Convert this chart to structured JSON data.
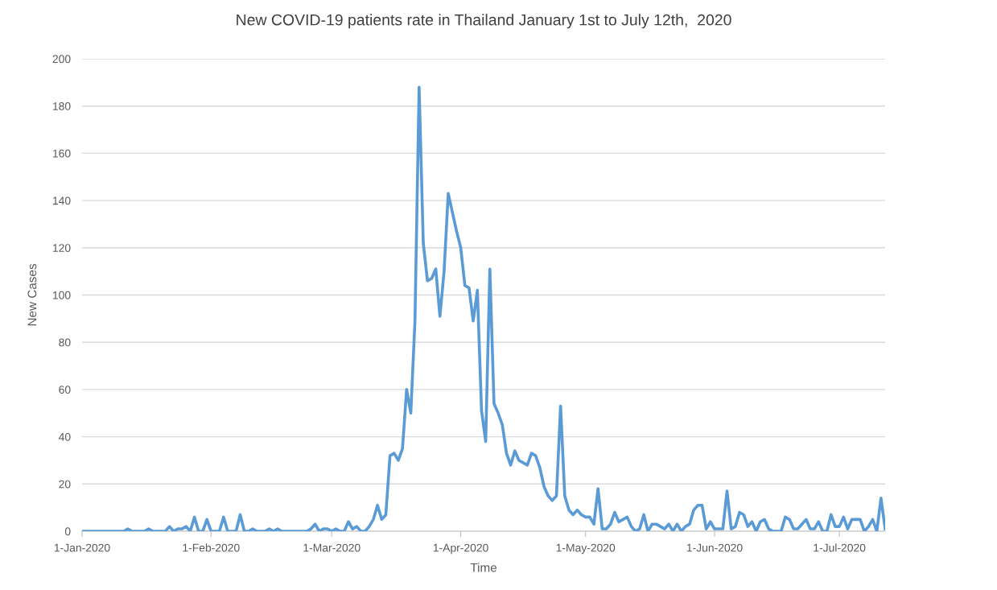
{
  "chart_data": {
    "type": "line",
    "title": "New COVID-19 patients rate in Thailand January 1st to July 12th,  2020",
    "xlabel": "Time",
    "ylabel": "New Cases",
    "x": [
      "2020-01-01",
      "2020-01-11",
      "2020-01-12",
      "2020-01-13",
      "2020-01-16",
      "2020-01-17",
      "2020-01-18",
      "2020-01-21",
      "2020-01-22",
      "2020-01-23",
      "2020-01-24",
      "2020-01-25",
      "2020-01-26",
      "2020-01-27",
      "2020-01-28",
      "2020-01-29",
      "2020-01-30",
      "2020-01-31",
      "2020-02-01",
      "2020-02-03",
      "2020-02-04",
      "2020-02-05",
      "2020-02-07",
      "2020-02-08",
      "2020-02-09",
      "2020-02-10",
      "2020-02-11",
      "2020-02-12",
      "2020-02-14",
      "2020-02-15",
      "2020-02-16",
      "2020-02-17",
      "2020-02-18",
      "2020-02-24",
      "2020-02-25",
      "2020-02-26",
      "2020-02-27",
      "2020-02-28",
      "2020-02-29",
      "2020-03-01",
      "2020-03-02",
      "2020-03-03",
      "2020-03-04",
      "2020-03-05",
      "2020-03-06",
      "2020-03-07",
      "2020-03-08",
      "2020-03-09",
      "2020-03-10",
      "2020-03-11",
      "2020-03-12",
      "2020-03-13",
      "2020-03-14",
      "2020-03-15",
      "2020-03-16",
      "2020-03-17",
      "2020-03-18",
      "2020-03-19",
      "2020-03-20",
      "2020-03-21",
      "2020-03-22",
      "2020-03-23",
      "2020-03-24",
      "2020-03-25",
      "2020-03-26",
      "2020-03-27",
      "2020-03-28",
      "2020-03-29",
      "2020-03-30",
      "2020-03-31",
      "2020-04-01",
      "2020-04-02",
      "2020-04-03",
      "2020-04-04",
      "2020-04-05",
      "2020-04-06",
      "2020-04-07",
      "2020-04-08",
      "2020-04-09",
      "2020-04-10",
      "2020-04-11",
      "2020-04-12",
      "2020-04-13",
      "2020-04-14",
      "2020-04-15",
      "2020-04-16",
      "2020-04-17",
      "2020-04-18",
      "2020-04-19",
      "2020-04-20",
      "2020-04-21",
      "2020-04-22",
      "2020-04-23",
      "2020-04-24",
      "2020-04-25",
      "2020-04-26",
      "2020-04-27",
      "2020-04-28",
      "2020-04-29",
      "2020-04-30",
      "2020-05-01",
      "2020-05-02",
      "2020-05-03",
      "2020-05-04",
      "2020-05-05",
      "2020-05-06",
      "2020-05-07",
      "2020-05-08",
      "2020-05-09",
      "2020-05-10",
      "2020-05-11",
      "2020-05-12",
      "2020-05-13",
      "2020-05-14",
      "2020-05-15",
      "2020-05-16",
      "2020-05-17",
      "2020-05-18",
      "2020-05-19",
      "2020-05-20",
      "2020-05-21",
      "2020-05-22",
      "2020-05-23",
      "2020-05-24",
      "2020-05-25",
      "2020-05-26",
      "2020-05-27",
      "2020-05-28",
      "2020-05-29",
      "2020-05-30",
      "2020-05-31",
      "2020-06-01",
      "2020-06-02",
      "2020-06-03",
      "2020-06-04",
      "2020-06-05",
      "2020-06-06",
      "2020-06-07",
      "2020-06-08",
      "2020-06-09",
      "2020-06-10",
      "2020-06-11",
      "2020-06-12",
      "2020-06-13",
      "2020-06-14",
      "2020-06-15",
      "2020-06-16",
      "2020-06-17",
      "2020-06-18",
      "2020-06-19",
      "2020-06-20",
      "2020-06-21",
      "2020-06-22",
      "2020-06-23",
      "2020-06-24",
      "2020-06-25",
      "2020-06-26",
      "2020-06-27",
      "2020-06-28",
      "2020-06-29",
      "2020-06-30",
      "2020-07-01",
      "2020-07-02",
      "2020-07-03",
      "2020-07-04",
      "2020-07-05",
      "2020-07-06",
      "2020-07-07",
      "2020-07-08",
      "2020-07-09",
      "2020-07-10",
      "2020-07-11",
      "2020-07-12"
    ],
    "series": [
      {
        "color": "#5b9bd5",
        "values": [
          0,
          0,
          1,
          0,
          0,
          1,
          0,
          0,
          2,
          0,
          1,
          1,
          2,
          0,
          6,
          0,
          0,
          5,
          0,
          0,
          6,
          0,
          0,
          7,
          0,
          0,
          1,
          0,
          0,
          1,
          0,
          1,
          0,
          0,
          1,
          3,
          0,
          1,
          1,
          0,
          1,
          0,
          0,
          4,
          1,
          2,
          0,
          0,
          2,
          5,
          11,
          5,
          7,
          32,
          33,
          30,
          35,
          60,
          50,
          89,
          188,
          122,
          106,
          107,
          111,
          91,
          110,
          143,
          135,
          127,
          120,
          104,
          103,
          89,
          102,
          51,
          38,
          111,
          54,
          50,
          45,
          33,
          28,
          34,
          30,
          29,
          28,
          33,
          32,
          27,
          19,
          15,
          13,
          15,
          53,
          15,
          9,
          7,
          9,
          7,
          6,
          6,
          3,
          18,
          1,
          1,
          3,
          8,
          4,
          5,
          6,
          2,
          0,
          1,
          7,
          0,
          3,
          3,
          2,
          1,
          3,
          0,
          3,
          0,
          2,
          3,
          9,
          11,
          11,
          1,
          4,
          1,
          1,
          1,
          17,
          1,
          2,
          8,
          7,
          2,
          4,
          0,
          4,
          5,
          1,
          0,
          0,
          0,
          6,
          5,
          1,
          1,
          3,
          5,
          1,
          1,
          4,
          0,
          0,
          7,
          2,
          2,
          6,
          1,
          5,
          5,
          5,
          0,
          2,
          5,
          0,
          14,
          1
        ]
      }
    ],
    "xlim": [
      "2020-01-01",
      "2020-07-12"
    ],
    "xticks": [
      {
        "value": "2020-01-01",
        "label": "1-Jan-2020"
      },
      {
        "value": "2020-02-01",
        "label": "1-Feb-2020"
      },
      {
        "value": "2020-03-01",
        "label": "1-Mar-2020"
      },
      {
        "value": "2020-04-01",
        "label": "1-Apr-2020"
      },
      {
        "value": "2020-05-01",
        "label": "1-May-2020"
      },
      {
        "value": "2020-06-01",
        "label": "1-Jun-2020"
      },
      {
        "value": "2020-07-01",
        "label": "1-Jul-2020"
      }
    ],
    "ylim": [
      0,
      200
    ],
    "yticks": [
      0,
      20,
      40,
      60,
      80,
      100,
      120,
      140,
      160,
      180,
      200
    ],
    "grid": "y",
    "marker": "none",
    "line_style": "solid"
  }
}
